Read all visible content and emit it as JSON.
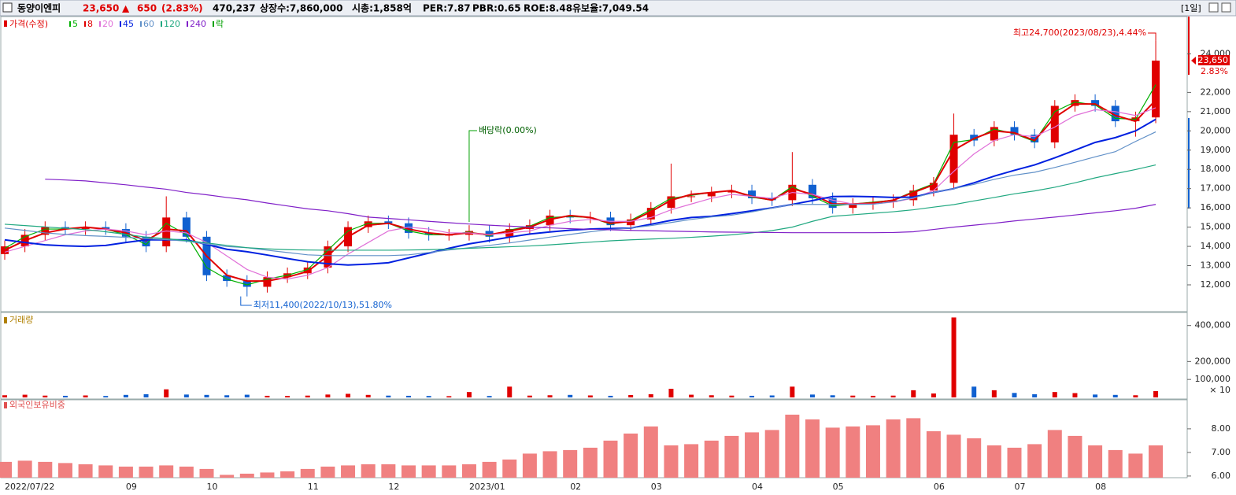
{
  "header": {
    "name": "동양이엔피",
    "price": "23,650",
    "arrow": "▲",
    "change": "650",
    "rate": "(2.83%)",
    "volume": "470,237",
    "shares": "상장수:7,860,000",
    "cap": "시총:1,858억",
    "per": "PER:7.87",
    "pbr": "PBR:0.65",
    "roe": "ROE:8.48",
    "reserve": "유보율:7,049.54",
    "period": "[1일]"
  },
  "chart_data": [
    {
      "type": "candlestick",
      "price_label": "가격(수정)",
      "ex_label": "락",
      "ex_color": "#00a000",
      "up_color": "#e00000",
      "down_color": "#1060d0",
      "last_label": "23,650",
      "change_label": "2.83%",
      "annotations": [
        "최고24,700(2023/08/23),4.44%",
        "최저11,400(2022/10/13),51.80%",
        "배당락(0.00%)"
      ],
      "categories": [
        "2022/07/22",
        null,
        null,
        null,
        null,
        null,
        "09",
        null,
        null,
        null,
        "10",
        null,
        null,
        null,
        null,
        "11",
        null,
        null,
        null,
        "12",
        null,
        null,
        null,
        "2023/01",
        null,
        null,
        null,
        null,
        "02",
        null,
        null,
        null,
        "03",
        null,
        null,
        null,
        null,
        "04",
        null,
        null,
        null,
        "05",
        null,
        null,
        null,
        null,
        "06",
        null,
        null,
        null,
        "07",
        null,
        null,
        null,
        "08",
        null,
        null,
        null
      ],
      "open": [
        13600,
        14000,
        14600,
        15000,
        14900,
        15000,
        14900,
        14500,
        14000,
        15500,
        14500,
        12500,
        12200,
        11900,
        12400,
        12600,
        12900,
        14000,
        15000,
        15300,
        15200,
        14700,
        14600,
        14600,
        14800,
        14500,
        14900,
        15100,
        15600,
        15500,
        15500,
        15100,
        15400,
        16000,
        16600,
        16600,
        16800,
        16900,
        16500,
        16400,
        17200,
        16500,
        16000,
        16200,
        16300,
        16400,
        16900,
        17300,
        19800,
        19500,
        20200,
        19800,
        19400,
        21300,
        21600,
        21300,
        20500,
        20700
      ],
      "high": [
        14300,
        14900,
        15300,
        15300,
        15300,
        15300,
        15200,
        14800,
        16600,
        15800,
        14800,
        12800,
        12500,
        12700,
        12900,
        13200,
        14300,
        15300,
        15600,
        15600,
        15500,
        15000,
        14900,
        15100,
        15100,
        15200,
        15400,
        15900,
        15900,
        15800,
        15800,
        15700,
        16300,
        18300,
        16900,
        17100,
        17200,
        17200,
        16800,
        18900,
        17500,
        16800,
        16500,
        16600,
        16700,
        17200,
        17600,
        20900,
        20100,
        20500,
        20500,
        20100,
        21600,
        21900,
        21900,
        21600,
        21000,
        24700
      ],
      "low": [
        13300,
        13700,
        14300,
        14600,
        14600,
        14600,
        14200,
        13700,
        13700,
        14200,
        12200,
        11900,
        11400,
        11600,
        12100,
        12300,
        12600,
        13700,
        14700,
        14900,
        14400,
        14300,
        14300,
        14300,
        14200,
        14200,
        14600,
        14800,
        15200,
        15200,
        14800,
        14800,
        15100,
        15700,
        16300,
        16300,
        16500,
        16200,
        16100,
        16100,
        16200,
        15700,
        15700,
        15900,
        16000,
        16100,
        16600,
        17000,
        19200,
        19200,
        19500,
        19100,
        19100,
        21000,
        21000,
        20200,
        19700,
        20400
      ],
      "close": [
        14000,
        14600,
        15000,
        14900,
        15000,
        14900,
        14500,
        14000,
        15500,
        14500,
        12500,
        12200,
        11900,
        12400,
        12600,
        12900,
        14000,
        15000,
        15300,
        15200,
        14700,
        14600,
        14600,
        14800,
        14500,
        14900,
        15100,
        15600,
        15500,
        15500,
        15100,
        15400,
        16000,
        16600,
        16600,
        16800,
        16900,
        16500,
        16400,
        17200,
        16500,
        16000,
        16200,
        16300,
        16400,
        16900,
        17300,
        19800,
        19500,
        20200,
        19800,
        19400,
        21300,
        21600,
        21300,
        20500,
        20700,
        23650
      ],
      "series": [
        {
          "name": "5",
          "color": "#00b000",
          "values": [
            13900,
            14500,
            14900,
            14900,
            15000,
            14900,
            14600,
            14100,
            15200,
            14600,
            12900,
            12300,
            12000,
            12300,
            12500,
            12800,
            13800,
            14800,
            15200,
            15200,
            14800,
            14600,
            14600,
            14750,
            14550,
            14850,
            15050,
            15500,
            15550,
            15500,
            15150,
            15350,
            15900,
            16500,
            16650,
            16800,
            16900,
            16550,
            16400,
            17100,
            16600,
            16100,
            16200,
            16300,
            16400,
            16850,
            17250,
            19400,
            19550,
            20100,
            19850,
            19450,
            21000,
            21500,
            21350,
            20650,
            20600,
            22400
          ]
        },
        {
          "name": "8",
          "color": "#e00000",
          "values": [
            13800,
            14300,
            14700,
            14900,
            15000,
            14900,
            14700,
            14300,
            14900,
            14800,
            13500,
            12500,
            12200,
            12200,
            12400,
            12700,
            13500,
            14500,
            15100,
            15200,
            14900,
            14700,
            14600,
            14700,
            14600,
            14800,
            15000,
            15400,
            15600,
            15500,
            15200,
            15300,
            15800,
            16400,
            16700,
            16800,
            16900,
            16600,
            16400,
            17000,
            16700,
            16200,
            16200,
            16250,
            16400,
            16800,
            17200,
            19000,
            19600,
            20000,
            19900,
            19500,
            20700,
            21400,
            21400,
            20800,
            20500,
            21600
          ]
        },
        {
          "name": "20",
          "color": "#e070d8",
          "values": [
            13700,
            14000,
            14300,
            14600,
            14800,
            14900,
            14800,
            14600,
            14800,
            14700,
            14200,
            13500,
            12800,
            12400,
            12300,
            12500,
            12900,
            13600,
            14200,
            14800,
            15000,
            14900,
            14700,
            14700,
            14600,
            14700,
            14800,
            15100,
            15300,
            15400,
            15300,
            15300,
            15500,
            15900,
            16200,
            16500,
            16700,
            16600,
            16500,
            16800,
            16700,
            16400,
            16200,
            16200,
            16300,
            16500,
            16900,
            17900,
            18800,
            19500,
            19800,
            19700,
            20200,
            20800,
            21100,
            21000,
            20800,
            21200
          ]
        },
        {
          "name": "45",
          "color": "#0020e0",
          "values": [
            14340,
            14200,
            14080,
            14030,
            14000,
            14050,
            14200,
            14340,
            14340,
            14340,
            14100,
            13850,
            13720,
            13550,
            13370,
            13200,
            13100,
            13030,
            13080,
            13150,
            13400,
            13650,
            13900,
            14130,
            14300,
            14480,
            14640,
            14750,
            14840,
            14900,
            14930,
            14950,
            15150,
            15350,
            15500,
            15560,
            15700,
            15850,
            16000,
            16180,
            16380,
            16590,
            16600,
            16580,
            16540,
            16560,
            16800,
            17000,
            17300,
            17650,
            17950,
            18230,
            18600,
            19000,
            19400,
            19650,
            20000,
            20600
          ]
        },
        {
          "name": "60",
          "color": "#6090c8",
          "values": [
            14950,
            14830,
            14700,
            14620,
            14560,
            14520,
            14470,
            14400,
            14350,
            14270,
            14120,
            13990,
            13930,
            13800,
            13680,
            13560,
            13520,
            13520,
            13520,
            13520,
            13560,
            13680,
            13810,
            13930,
            14050,
            14180,
            14330,
            14480,
            14620,
            14760,
            14880,
            14950,
            15080,
            15240,
            15400,
            15530,
            15620,
            15790,
            15990,
            16180,
            16180,
            16180,
            16180,
            16190,
            16320,
            16520,
            16800,
            17000,
            17220,
            17480,
            17700,
            17850,
            18100,
            18370,
            18650,
            18920,
            19450,
            19950
          ]
        },
        {
          "name": "120",
          "color": "#20a880",
          "values": [
            15150,
            15080,
            15010,
            14940,
            14870,
            14760,
            14620,
            14480,
            14400,
            14300,
            14180,
            14050,
            13930,
            13870,
            13830,
            13810,
            13800,
            13800,
            13800,
            13800,
            13810,
            13830,
            13860,
            13900,
            13940,
            13980,
            14020,
            14080,
            14150,
            14220,
            14290,
            14340,
            14380,
            14420,
            14470,
            14530,
            14600,
            14700,
            14820,
            15000,
            15300,
            15560,
            15640,
            15720,
            15800,
            15900,
            16040,
            16170,
            16360,
            16540,
            16730,
            16880,
            17070,
            17300,
            17560,
            17780,
            17990,
            18230
          ]
        },
        {
          "name": "240",
          "color": "#8020c8",
          "values": [
            null,
            null,
            17490,
            17450,
            17400,
            17300,
            17200,
            17080,
            16970,
            16800,
            16680,
            16540,
            16420,
            16250,
            16100,
            15950,
            15850,
            15700,
            15520,
            15450,
            15380,
            15300,
            15230,
            15160,
            15100,
            15050,
            15000,
            14960,
            14920,
            14890,
            14860,
            14830,
            14810,
            14790,
            14770,
            14750,
            14740,
            14730,
            14720,
            14710,
            14710,
            14710,
            14710,
            14710,
            14720,
            14760,
            14880,
            15000,
            15100,
            15200,
            15320,
            15420,
            15520,
            15630,
            15740,
            15850,
            15980,
            16180
          ]
        }
      ],
      "ylim": [
        10650,
        25900
      ],
      "yticks": [
        {
          "value": 12000,
          "label": "12,000"
        },
        {
          "value": 13000,
          "label": "13,000"
        },
        {
          "value": 14000,
          "label": "14,000"
        },
        {
          "value": 15000,
          "label": "15,000"
        },
        {
          "value": 16000,
          "label": "16,000"
        },
        {
          "value": 17000,
          "label": "17,000"
        },
        {
          "value": 18000,
          "label": "18,000"
        },
        {
          "value": 19000,
          "label": "19,000"
        },
        {
          "value": 20000,
          "label": "20,000"
        },
        {
          "value": 21000,
          "label": "21,000"
        },
        {
          "value": 22000,
          "label": "22,000"
        },
        {
          "value": 24000,
          "label": "24,000"
        }
      ]
    },
    {
      "type": "bar",
      "title": "거래량",
      "title_color": "#b08000",
      "unit_label": "× 10",
      "values": [
        12000,
        15000,
        10000,
        9000,
        11000,
        8000,
        14000,
        18000,
        45000,
        16000,
        14000,
        12000,
        15000,
        9000,
        8000,
        10000,
        16000,
        20000,
        14000,
        10000,
        9000,
        8000,
        7000,
        30000,
        8000,
        60000,
        10000,
        12000,
        14000,
        11000,
        9000,
        13000,
        18000,
        48000,
        15000,
        12000,
        10000,
        9000,
        11000,
        60000,
        16000,
        12000,
        10000,
        9000,
        10000,
        40000,
        22000,
        445000,
        60000,
        40000,
        25000,
        18000,
        30000,
        24000,
        16000,
        14000,
        12000,
        35000
      ],
      "ylim": [
        0,
        460000
      ],
      "yticks": [
        {
          "value": 100000,
          "label": "100,000"
        },
        {
          "value": 200000,
          "label": "200,000"
        },
        {
          "value": 400000,
          "label": "400,000"
        }
      ]
    },
    {
      "type": "bar",
      "title": "외국인보유비중",
      "title_color": "#e05050",
      "color": "#f08080",
      "values": [
        6.6,
        6.65,
        6.6,
        6.55,
        6.5,
        6.45,
        6.4,
        6.4,
        6.45,
        6.4,
        6.3,
        6.05,
        6.1,
        6.15,
        6.2,
        6.3,
        6.4,
        6.45,
        6.5,
        6.5,
        6.45,
        6.45,
        6.45,
        6.5,
        6.6,
        6.7,
        6.95,
        7.05,
        7.1,
        7.2,
        7.5,
        7.8,
        8.1,
        7.3,
        7.35,
        7.5,
        7.7,
        7.85,
        7.95,
        8.6,
        8.4,
        8.05,
        8.1,
        8.15,
        8.4,
        8.45,
        7.9,
        7.75,
        7.6,
        7.3,
        7.2,
        7.35,
        7.95,
        7.7,
        7.3,
        7.1,
        6.95,
        7.3
      ],
      "ylim": [
        5.93,
        9.23
      ],
      "yticks": [
        {
          "value": 6,
          "label": "6.00"
        },
        {
          "value": 7,
          "label": "7.00"
        },
        {
          "value": 8,
          "label": "8.00"
        }
      ]
    }
  ]
}
